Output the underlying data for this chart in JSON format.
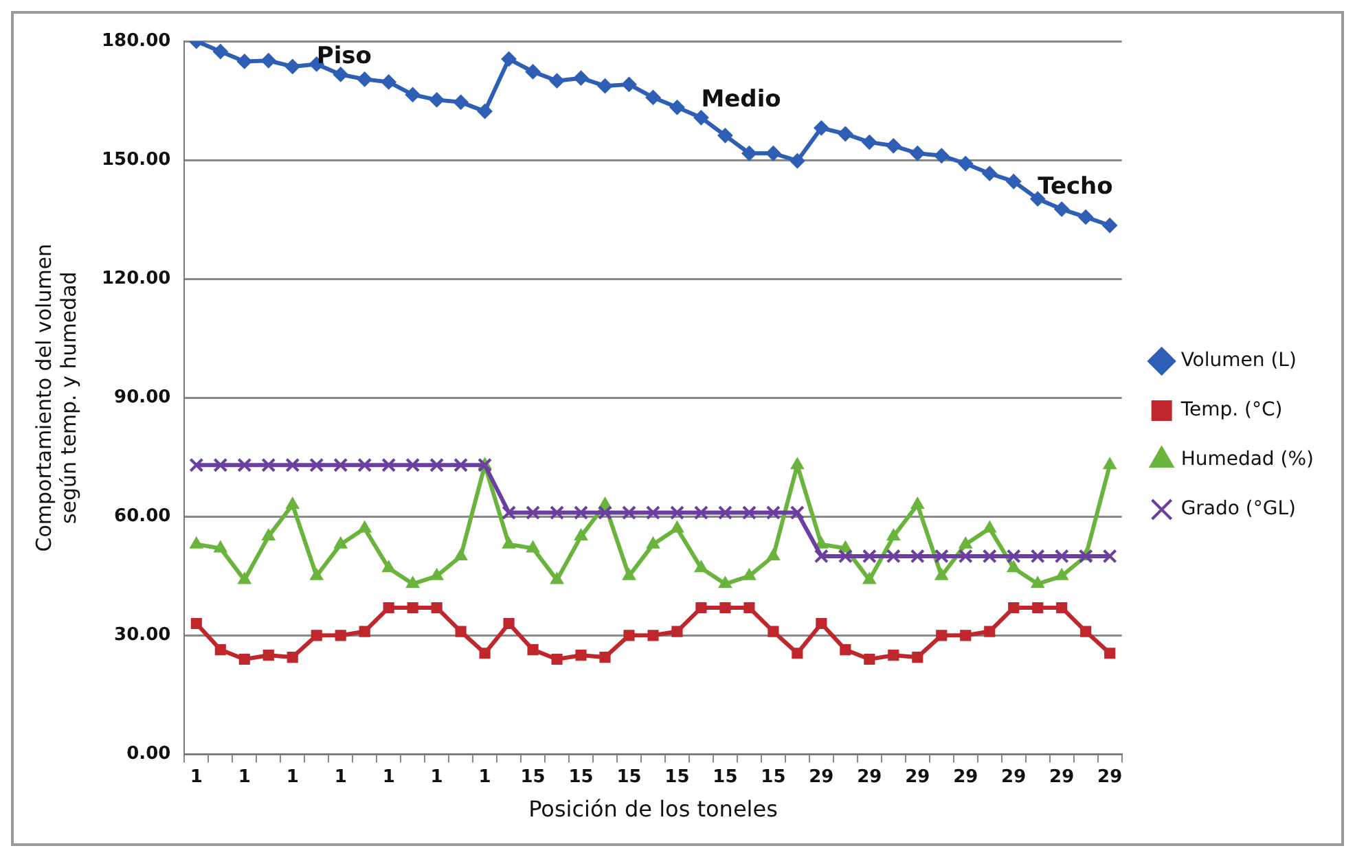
{
  "chart_data": {
    "type": "line",
    "xlabel": "Posición de los toneles",
    "ylabel": "Comportamiento del volumen\nsegún temp. y humedad",
    "categories": [
      "1",
      null,
      "1",
      null,
      "1",
      null,
      "1",
      null,
      "1",
      null,
      "1",
      null,
      "1",
      null,
      "15",
      null,
      "15",
      null,
      "15",
      null,
      "15",
      null,
      "15",
      null,
      "15",
      null,
      "29",
      null,
      "29",
      null,
      "29",
      null,
      "29",
      null,
      "29",
      null,
      "29",
      null,
      "29"
    ],
    "series": [
      {
        "name": "Volumen (L)",
        "color": "#2e5fb5",
        "marker": "diamond",
        "values": [
          180,
          177.4,
          174.9,
          175.1,
          173.6,
          174.2,
          171.6,
          170.4,
          169.7,
          166.5,
          165.2,
          164.6,
          162.3,
          175.5,
          172.3,
          170,
          170.7,
          168.7,
          169.1,
          165.8,
          163.3,
          160.7,
          156.2,
          151.7,
          151.7,
          149.8,
          158.1,
          156.6,
          154.5,
          153.6,
          151.7,
          151.1,
          149.1,
          146.6,
          144.6,
          140.2,
          137.6,
          135.6,
          133.5
        ]
      },
      {
        "name": "Temp. (°C)",
        "color": "#c0272d",
        "marker": "square",
        "values": [
          33,
          26.4,
          24,
          25,
          24.5,
          30,
          30,
          31,
          37,
          37,
          37,
          31,
          25.5,
          33,
          26.4,
          24,
          25,
          24.5,
          30,
          30,
          31,
          37,
          37,
          37,
          31,
          25.5,
          33,
          26.4,
          24,
          25,
          24.5,
          30,
          30,
          31,
          37,
          37,
          37,
          31,
          25.5
        ]
      },
      {
        "name": "Humedad (%)",
        "color": "#6ab43e",
        "marker": "triangle",
        "values": [
          53,
          52,
          44,
          55,
          63,
          45,
          53,
          57,
          47,
          43,
          45,
          50,
          73,
          53,
          52,
          44,
          55,
          63,
          45,
          53,
          57,
          47,
          43,
          45,
          50,
          73,
          53,
          52,
          44,
          55,
          63,
          45,
          53,
          57,
          47,
          43,
          45,
          50,
          73
        ]
      },
      {
        "name": "Grado (°GL)",
        "color": "#6a3fa0",
        "marker": "cross",
        "values": [
          73,
          73,
          73,
          73,
          73,
          73,
          73,
          73,
          73,
          73,
          73,
          73,
          73,
          61,
          61,
          61,
          61,
          61,
          61,
          61,
          61,
          61,
          61,
          61,
          61,
          61,
          50,
          50,
          50,
          50,
          50,
          50,
          50,
          50,
          50,
          50,
          50,
          50,
          50
        ]
      }
    ],
    "ylim": [
      0,
      180
    ],
    "yticks": [
      {
        "value": 0,
        "label": "0.00"
      },
      {
        "value": 30,
        "label": "30.00"
      },
      {
        "value": 60,
        "label": "60.00"
      },
      {
        "value": 90,
        "label": "90.00"
      },
      {
        "value": 120,
        "label": "120.00"
      },
      {
        "value": 150,
        "label": "150.00"
      },
      {
        "value": 180,
        "label": "180.00"
      }
    ],
    "grid": "y",
    "legend": "right",
    "annotations": [
      "Piso",
      "Medio",
      "Techo"
    ]
  }
}
